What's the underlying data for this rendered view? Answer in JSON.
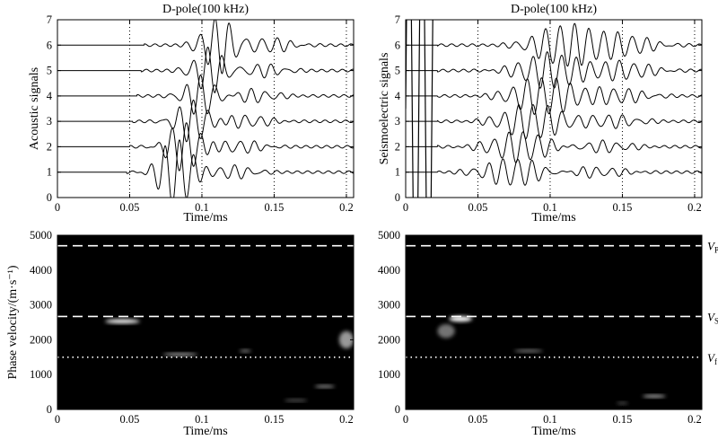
{
  "chart_data": [
    {
      "type": "line",
      "panel": "top-left",
      "title": "D-pole(100 kHz)",
      "xlabel": "Time/ms",
      "ylabel": "Acoustic signals",
      "xlim": [
        0,
        0.205
      ],
      "ylim": [
        0,
        7
      ],
      "xticks": [
        "0",
        "0.05",
        "0.1",
        "0.15",
        "0.2"
      ],
      "yticks": [
        "0",
        "1",
        "2",
        "3",
        "4",
        "5",
        "6",
        "7"
      ],
      "vlines": [
        0.05,
        0.1,
        0.15,
        0.2
      ],
      "traces": [
        {
          "baseline": 1,
          "onset": 0.048,
          "packets": [
            {
              "center": 0.082,
              "amp": 1.35,
              "width": 0.014
            },
            {
              "center": 0.12,
              "amp": 0.25,
              "width": 0.02
            }
          ]
        },
        {
          "baseline": 2,
          "onset": 0.05,
          "packets": [
            {
              "center": 0.088,
              "amp": 1.0,
              "width": 0.014
            },
            {
              "center": 0.125,
              "amp": 0.25,
              "width": 0.02
            }
          ]
        },
        {
          "baseline": 3,
          "onset": 0.052,
          "packets": [
            {
              "center": 0.094,
              "amp": 0.85,
              "width": 0.014
            },
            {
              "center": 0.13,
              "amp": 0.25,
              "width": 0.02
            }
          ]
        },
        {
          "baseline": 4,
          "onset": 0.055,
          "packets": [
            {
              "center": 0.1,
              "amp": 0.8,
              "width": 0.014
            },
            {
              "center": 0.135,
              "amp": 0.25,
              "width": 0.02
            }
          ]
        },
        {
          "baseline": 5,
          "onset": 0.058,
          "packets": [
            {
              "center": 0.106,
              "amp": 0.9,
              "width": 0.014
            },
            {
              "center": 0.14,
              "amp": 0.25,
              "width": 0.02
            }
          ]
        },
        {
          "baseline": 6,
          "onset": 0.06,
          "packets": [
            {
              "center": 0.112,
              "amp": 1.1,
              "width": 0.014
            },
            {
              "center": 0.145,
              "amp": 0.3,
              "width": 0.02
            }
          ]
        }
      ]
    },
    {
      "type": "line",
      "panel": "top-right",
      "title": "D-pole(100 kHz)",
      "xlabel": "Time/ms",
      "ylabel": "Seismoelectric signals",
      "xlim": [
        0,
        0.205
      ],
      "ylim": [
        0,
        7
      ],
      "xticks": [
        "0",
        "0.05",
        "0.1",
        "0.15",
        "0.2"
      ],
      "yticks": [
        "0",
        "1",
        "2",
        "3",
        "4",
        "5",
        "6",
        "7"
      ],
      "vlines": [
        0.05,
        0.1,
        0.15,
        0.2
      ],
      "traces": [
        {
          "baseline": 1,
          "onset": 0.022,
          "packets": [
            {
              "center": 0.075,
              "amp": 0.55,
              "width": 0.025
            },
            {
              "center": 0.13,
              "amp": 0.2,
              "width": 0.025
            }
          ]
        },
        {
          "baseline": 2,
          "onset": 0.022,
          "packets": [
            {
              "center": 0.08,
              "amp": 0.6,
              "width": 0.025
            },
            {
              "center": 0.135,
              "amp": 0.22,
              "width": 0.025
            }
          ]
        },
        {
          "baseline": 3,
          "onset": 0.022,
          "packets": [
            {
              "center": 0.088,
              "amp": 0.7,
              "width": 0.025
            },
            {
              "center": 0.14,
              "amp": 0.25,
              "width": 0.025
            }
          ]
        },
        {
          "baseline": 4,
          "onset": 0.022,
          "packets": [
            {
              "center": 0.095,
              "amp": 0.75,
              "width": 0.025
            },
            {
              "center": 0.145,
              "amp": 0.3,
              "width": 0.025
            }
          ]
        },
        {
          "baseline": 5,
          "onset": 0.022,
          "packets": [
            {
              "center": 0.1,
              "amp": 0.7,
              "width": 0.025
            },
            {
              "center": 0.15,
              "amp": 0.35,
              "width": 0.025
            }
          ]
        },
        {
          "baseline": 6,
          "onset": 0.022,
          "packets": [
            {
              "center": 0.11,
              "amp": 0.8,
              "width": 0.025
            },
            {
              "center": 0.15,
              "amp": 0.4,
              "width": 0.025
            }
          ]
        }
      ],
      "early_burst": {
        "start": 0.0,
        "end": 0.02,
        "note": "large-amplitude oscillation exceeding axis range"
      }
    },
    {
      "type": "heatmap",
      "panel": "bottom-left",
      "xlabel": "Time/ms",
      "ylabel": "Phase velocity/(m·s⁻¹)",
      "xlim": [
        0,
        0.205
      ],
      "ylim": [
        0,
        5000
      ],
      "xticks": [
        "0",
        "0.05",
        "0.1",
        "0.15",
        "0.2"
      ],
      "yticks": [
        "0",
        "1000",
        "2000",
        "3000",
        "4000",
        "5000"
      ],
      "hlines": [
        {
          "value": 4700,
          "style": "dashed"
        },
        {
          "value": 2670,
          "style": "dashed"
        },
        {
          "value": 1500,
          "style": "dotted"
        }
      ],
      "blobs": [
        {
          "t": 0.045,
          "v": 2530,
          "dt": 0.012,
          "dv": 60,
          "intensity": 1.0
        },
        {
          "t": 0.085,
          "v": 1580,
          "dt": 0.012,
          "dv": 35,
          "intensity": 0.7
        },
        {
          "t": 0.13,
          "v": 1680,
          "dt": 0.004,
          "dv": 40,
          "intensity": 0.5
        },
        {
          "t": 0.165,
          "v": 260,
          "dt": 0.008,
          "dv": 30,
          "intensity": 0.35
        },
        {
          "t": 0.185,
          "v": 660,
          "dt": 0.007,
          "dv": 30,
          "intensity": 0.6
        },
        {
          "t": 0.2,
          "v": 2000,
          "dt": 0.005,
          "dv": 250,
          "intensity": 0.6
        }
      ]
    },
    {
      "type": "heatmap",
      "panel": "bottom-right",
      "xlabel": "Time/ms",
      "ylabel": "",
      "xlim": [
        0,
        0.205
      ],
      "ylim": [
        0,
        5000
      ],
      "xticks": [
        "0",
        "0.05",
        "0.1",
        "0.15",
        "0.2"
      ],
      "yticks": [
        "0",
        "1000",
        "2000",
        "3000",
        "4000",
        "5000"
      ],
      "hlines": [
        {
          "value": 4700,
          "style": "dashed",
          "label": "V",
          "sub": "P"
        },
        {
          "value": 2670,
          "style": "dashed",
          "label": "V",
          "sub": "S"
        },
        {
          "value": 1500,
          "style": "dotted",
          "label": "V",
          "sub": "f"
        }
      ],
      "blobs": [
        {
          "t": 0.038,
          "v": 2600,
          "dt": 0.008,
          "dv": 80,
          "intensity": 1.0
        },
        {
          "t": 0.028,
          "v": 2250,
          "dt": 0.006,
          "dv": 200,
          "intensity": 0.45
        },
        {
          "t": 0.085,
          "v": 1680,
          "dt": 0.01,
          "dv": 40,
          "intensity": 0.5
        },
        {
          "t": 0.15,
          "v": 180,
          "dt": 0.004,
          "dv": 25,
          "intensity": 0.3
        },
        {
          "t": 0.172,
          "v": 380,
          "dt": 0.008,
          "dv": 25,
          "intensity": 0.75
        }
      ]
    }
  ]
}
